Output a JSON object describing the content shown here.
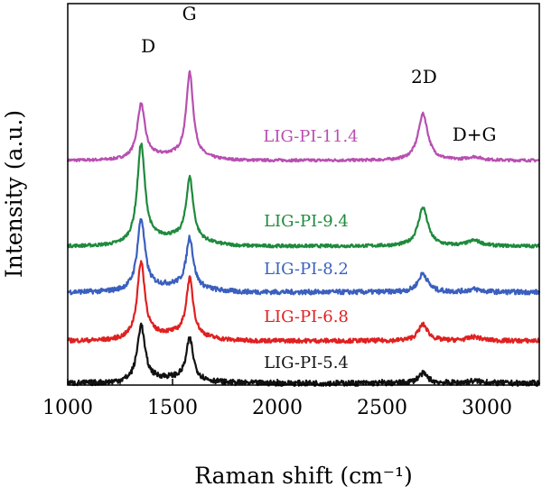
{
  "chart_data": {
    "type": "line",
    "xlabel": "Raman shift (cm⁻¹)",
    "ylabel": "Intensity (a.u.)",
    "xlim": [
      1000,
      3250
    ],
    "x_ticks": [
      1000,
      1500,
      2000,
      2500,
      3000
    ],
    "x_tick_labels": [
      "1000",
      "1500",
      "2000",
      "2500",
      "3000"
    ],
    "y_ticks": false,
    "grid": false,
    "legend": "inline labels",
    "peak_annotations": [
      {
        "label": "D",
        "x": 1350
      },
      {
        "label": "G",
        "x": 1580
      },
      {
        "label": "2D",
        "x": 2700
      },
      {
        "label": "D+G",
        "x": 2940
      }
    ],
    "series": [
      {
        "name": "LIG-PI-11.4",
        "color": "#b84fb0",
        "baseline": 178,
        "D": 1.0,
        "G": 1.55,
        "D2": 0.86,
        "DG": 0.06,
        "noise": 0.05
      },
      {
        "name": "LIG-PI-9.4",
        "color": "#1e8a3c",
        "baseline": 273,
        "D": 1.81,
        "G": 1.14,
        "D2": 0.71,
        "DG": 0.1,
        "noise": 0.06
      },
      {
        "name": "LIG-PI-8.2",
        "color": "#3a5fbf",
        "baseline": 324,
        "D": 1.3,
        "G": 0.92,
        "D2": 0.34,
        "DG": 0.05,
        "noise": 0.09
      },
      {
        "name": "LIG-PI-6.8",
        "color": "#e02020",
        "baseline": 378,
        "D": 1.4,
        "G": 1.05,
        "D2": 0.3,
        "DG": 0.07,
        "noise": 0.08
      },
      {
        "name": "LIG-PI-5.4",
        "color": "#111111",
        "baseline": 425,
        "D": 1.03,
        "G": 0.75,
        "D2": 0.18,
        "DG": 0.04,
        "noise": 0.1
      }
    ]
  }
}
